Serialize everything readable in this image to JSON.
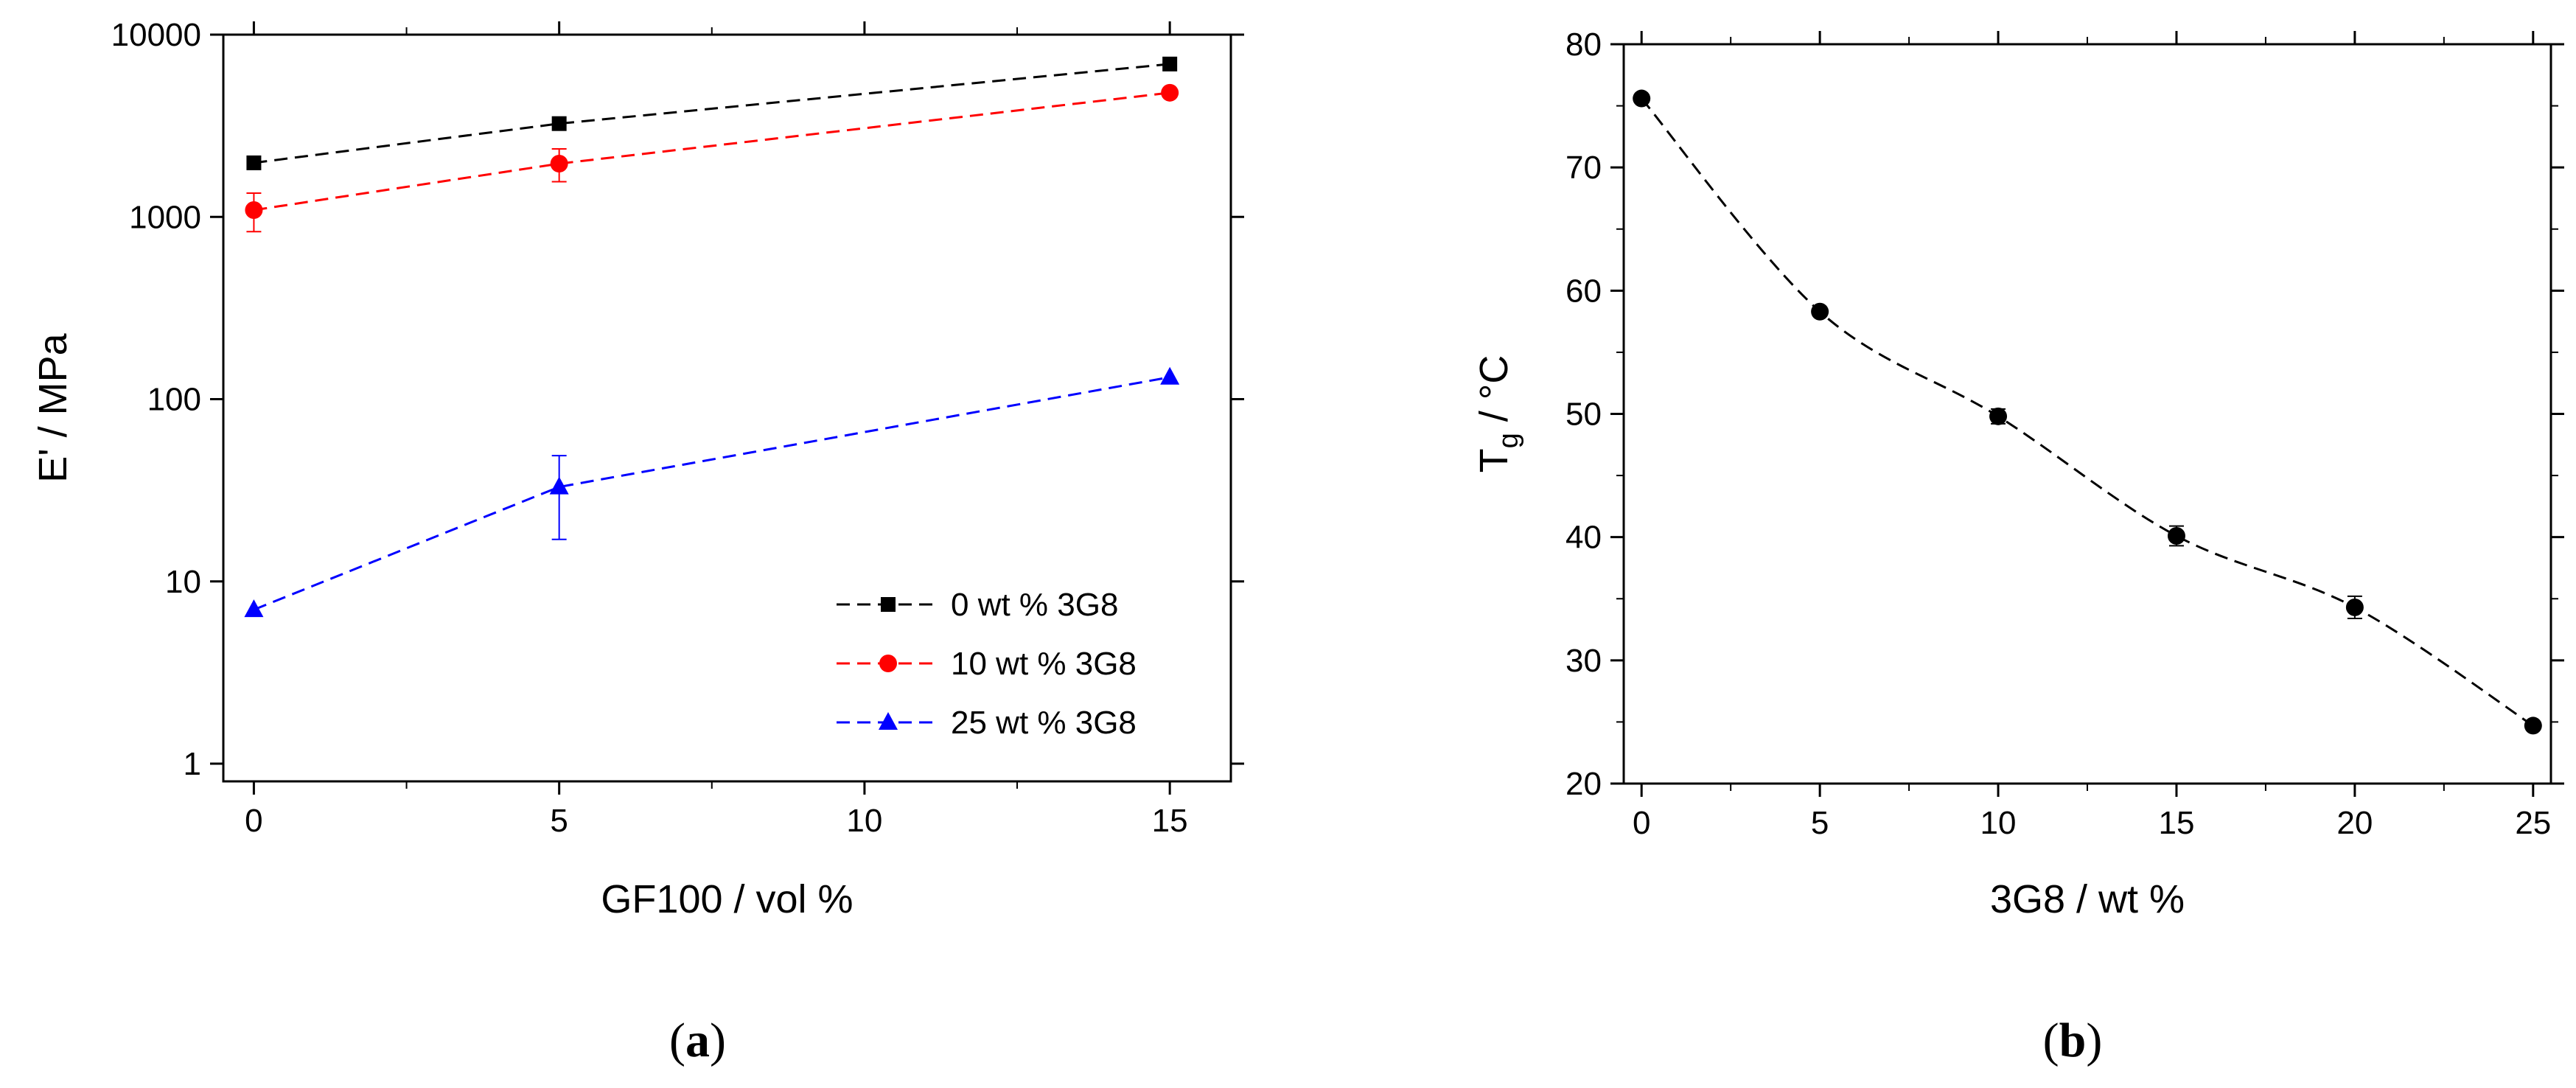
{
  "chart_data": [
    {
      "type": "line",
      "panel_label": "a",
      "scale_y": "log",
      "xlabel": "GF100 / vol %",
      "ylabel": "E' / MPa",
      "xlim": [
        -0.5,
        16
      ],
      "ylim": [
        0.8,
        10000
      ],
      "x_ticks": [
        0,
        5,
        10,
        15
      ],
      "x_tick_labels": [
        "0",
        "5",
        "10",
        "15"
      ],
      "y_ticks": [
        1,
        10,
        100,
        1000,
        10000
      ],
      "y_tick_labels": [
        "1",
        "10",
        "100",
        "1000",
        "10000"
      ],
      "legend_position": "bottom-right",
      "series": [
        {
          "name": "0 wt % 3G8",
          "color": "#000000",
          "marker": "square",
          "x": [
            0,
            5,
            15
          ],
          "values": [
            1980,
            3250,
            6900
          ],
          "errors": [
            0,
            0,
            0
          ]
        },
        {
          "name": "10 wt % 3G8",
          "color": "#ff0000",
          "marker": "circle",
          "x": [
            0,
            5,
            15
          ],
          "values": [
            1090,
            1960,
            4800
          ],
          "errors": [
            260,
            400,
            200
          ]
        },
        {
          "name": "25 wt % 3G8",
          "color": "#0000ff",
          "marker": "triangle",
          "x": [
            0,
            5,
            15
          ],
          "values": [
            7,
            33,
            132
          ],
          "errors": [
            0,
            16,
            0
          ]
        }
      ]
    },
    {
      "type": "line",
      "panel_label": "b",
      "scale_y": "linear",
      "xlabel": "3G8 / wt %",
      "ylabel_main": "T",
      "ylabel_sub": "g",
      "ylabel_rest": " / °C",
      "xlim": [
        -0.5,
        25.5
      ],
      "ylim": [
        20,
        80
      ],
      "x_ticks": [
        0,
        5,
        10,
        15,
        20,
        25
      ],
      "x_tick_labels": [
        "0",
        "5",
        "10",
        "15",
        "20",
        "25"
      ],
      "y_ticks": [
        20,
        30,
        40,
        50,
        60,
        70,
        80
      ],
      "y_tick_labels": [
        "20",
        "30",
        "40",
        "50",
        "60",
        "70",
        "80"
      ],
      "series": [
        {
          "name": "Tg",
          "color": "#000000",
          "marker": "circle",
          "x": [
            0,
            5,
            10,
            15,
            20,
            25
          ],
          "values": [
            75.6,
            58.3,
            49.8,
            40.1,
            34.3,
            24.7
          ],
          "errors": [
            0,
            0,
            0.6,
            0.8,
            0.9,
            0
          ]
        }
      ]
    }
  ]
}
